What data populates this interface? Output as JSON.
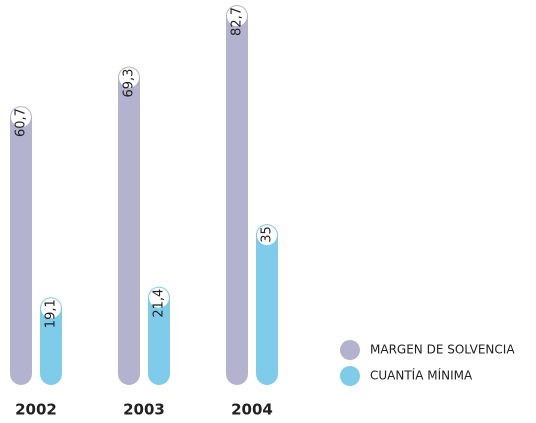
{
  "chart_data": {
    "type": "bar",
    "categories": [
      "2002",
      "2003",
      "2004"
    ],
    "series": [
      {
        "name": "MARGEN DE SOLVENCIA",
        "color": "#b3b3cf",
        "values": [
          60.7,
          69.3,
          82.7
        ],
        "value_labels": [
          "60,7",
          "69,3",
          "82,7"
        ]
      },
      {
        "name": "CUANTÍA MÍNIMA",
        "color": "#7fcbea",
        "values": [
          19.1,
          21.4,
          35
        ],
        "value_labels": [
          "19,1",
          "21,4",
          "35"
        ]
      }
    ],
    "legend": "right"
  }
}
